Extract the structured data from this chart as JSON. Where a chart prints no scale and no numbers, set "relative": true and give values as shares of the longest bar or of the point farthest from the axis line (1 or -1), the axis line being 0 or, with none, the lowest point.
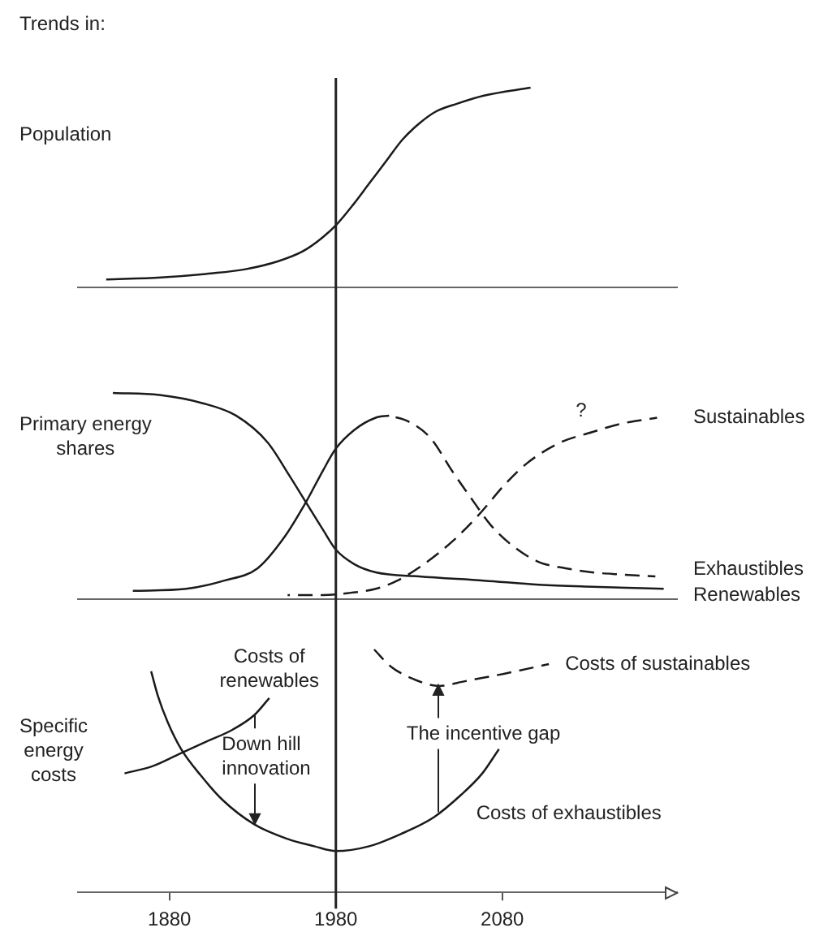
{
  "chart_data": [
    {
      "type": "line",
      "title": "Trends in:",
      "ylabel": "Population",
      "relative": true,
      "xlim": [
        1825,
        2185
      ],
      "tick_labels": false,
      "ref_lines": [
        {
          "axis": "x",
          "value": 1980
        }
      ],
      "series": [
        {
          "color": "#1a1a1a",
          "x": [
            1842,
            1875,
            1905,
            1925,
            1945,
            1960,
            1972,
            1981,
            1990,
            2000,
            2010,
            2020,
            2030,
            2040,
            2053,
            2069,
            2097
          ],
          "values": [
            0.04,
            0.05,
            0.07,
            0.09,
            0.13,
            0.18,
            0.25,
            0.32,
            0.41,
            0.52,
            0.63,
            0.74,
            0.82,
            0.88,
            0.92,
            0.96,
            1
          ]
        }
      ]
    },
    {
      "type": "line",
      "ylabel": "Primary energy\nshares",
      "relative": true,
      "xlim": [
        1825,
        2185
      ],
      "tick_labels": false,
      "ref_lines": [
        {
          "axis": "x",
          "value": 1980
        }
      ],
      "annotations": [
        "?"
      ],
      "series": [
        {
          "name": "Renewables",
          "color": "#1a1a1a",
          "x": [
            1846,
            1874,
            1900,
            1920,
            1939,
            1952,
            1962,
            1972,
            1980,
            1991,
            2004,
            2030,
            2069,
            2102,
            2134,
            2177
          ],
          "values": [
            1,
            0.99,
            0.95,
            0.89,
            0.76,
            0.6,
            0.47,
            0.34,
            0.24,
            0.17,
            0.13,
            0.11,
            0.09,
            0.07,
            0.06,
            0.05
          ]
        },
        {
          "color": "#1a1a1a",
          "x": [
            1858,
            1890,
            1913,
            1933,
            1949,
            1962,
            1972,
            1980,
            1991,
            2004,
            2012
          ],
          "values": [
            0.04,
            0.05,
            0.09,
            0.15,
            0.3,
            0.47,
            0.62,
            0.73,
            0.82,
            0.88,
            0.89
          ]
        },
        {
          "name": "Exhaustibles",
          "color": "#1a1a1a",
          "line_style": "dashed",
          "x": [
            2012,
            2024,
            2037,
            2050,
            2063,
            2073,
            2086,
            2102,
            2118,
            2134,
            2151,
            2172
          ],
          "values": [
            0.89,
            0.86,
            0.78,
            0.62,
            0.47,
            0.36,
            0.26,
            0.18,
            0.15,
            0.13,
            0.12,
            0.11
          ]
        },
        {
          "name": "Sustainables",
          "color": "#1a1a1a",
          "line_style": "dashed",
          "x": [
            1951,
            1972,
            1988,
            2004,
            2017,
            2033,
            2050,
            2066,
            2082,
            2095,
            2115,
            2134,
            2151,
            2173
          ],
          "values": [
            0.02,
            0.02,
            0.03,
            0.05,
            0.09,
            0.17,
            0.28,
            0.41,
            0.56,
            0.66,
            0.76,
            0.81,
            0.85,
            0.88
          ]
        }
      ]
    },
    {
      "type": "line",
      "ylabel": "Specific\nenergy\ncosts",
      "relative": true,
      "xlim": [
        1825,
        2185
      ],
      "xticks": [
        1880,
        1980,
        2080
      ],
      "tick_labels": "x",
      "ref_lines": [
        {
          "axis": "x",
          "value": 1980
        }
      ],
      "annotations": [
        {
          "text": "Down hill\ninnovation",
          "x": 1931,
          "y": 0.28
        },
        {
          "text": "The incentive gap",
          "x": 2042,
          "y": 0.85
        }
      ],
      "series": [
        {
          "name": "Costs of\nrenewables",
          "color": "#1a1a1a",
          "x": [
            1853,
            1870,
            1886,
            1902,
            1918,
            1931,
            1940
          ],
          "values": [
            0.49,
            0.52,
            0.57,
            0.62,
            0.67,
            0.73,
            0.8
          ]
        },
        {
          "name": "Costs of exhaustibles",
          "color": "#1a1a1a",
          "x": [
            1869,
            1873,
            1879,
            1887,
            1899,
            1912,
            1931,
            1951,
            1967,
            1980,
            2000,
            2019,
            2039,
            2055,
            2068,
            2078
          ],
          "values": [
            0.91,
            0.81,
            0.7,
            0.59,
            0.48,
            0.38,
            0.28,
            0.22,
            0.19,
            0.17,
            0.19,
            0.24,
            0.31,
            0.4,
            0.49,
            0.59
          ]
        },
        {
          "name": "Costs of sustainables",
          "color": "#1a1a1a",
          "line_style": "dashed",
          "x": [
            2003,
            2013,
            2026,
            2042,
            2058,
            2081,
            2108
          ],
          "values": [
            1,
            0.93,
            0.88,
            0.85,
            0.87,
            0.9,
            0.94
          ]
        }
      ]
    }
  ]
}
